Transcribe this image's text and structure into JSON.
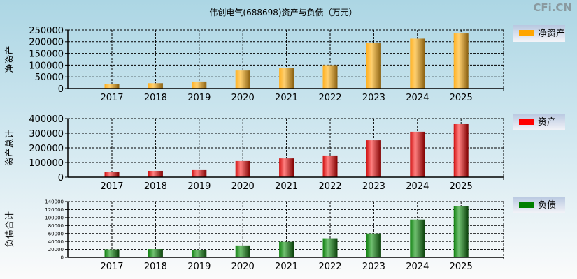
{
  "title": "伟创电气(688698)资产与负债（万元）",
  "watermark": "CFi.CN",
  "chart_data": [
    {
      "type": "bar",
      "ylabel": "净资产",
      "legend": "净资产",
      "color": "#ffa500",
      "gradient": [
        "#ffb020",
        "#ffd070",
        "#8a6010"
      ],
      "categories": [
        "2017",
        "2018",
        "2019",
        "2020",
        "2021",
        "2022",
        "2023",
        "2024",
        "2025"
      ],
      "values": [
        20000,
        23000,
        30000,
        77000,
        89000,
        100000,
        195000,
        213000,
        235000
      ],
      "ylim": [
        0,
        250000
      ],
      "yticks": [
        0,
        50000,
        100000,
        150000,
        200000,
        250000
      ],
      "grid": true,
      "legend_position": "right"
    },
    {
      "type": "bar",
      "ylabel": "资产总计",
      "legend": "资产",
      "color": "#ff0000",
      "gradient": [
        "#d01010",
        "#ff8080",
        "#800000"
      ],
      "categories": [
        "2017",
        "2018",
        "2019",
        "2020",
        "2021",
        "2022",
        "2023",
        "2024",
        "2025"
      ],
      "values": [
        38000,
        43000,
        48000,
        110000,
        128000,
        148000,
        252000,
        310000,
        362000
      ],
      "ylim": [
        0,
        400000
      ],
      "yticks": [
        0,
        100000,
        200000,
        300000,
        400000
      ],
      "grid": true,
      "legend_position": "right"
    },
    {
      "type": "bar",
      "ylabel": "负债合计",
      "legend": "负债",
      "color": "#008000",
      "gradient": [
        "#108010",
        "#70c070",
        "#0a400a"
      ],
      "categories": [
        "2017",
        "2018",
        "2019",
        "2020",
        "2021",
        "2022",
        "2023",
        "2024",
        "2025"
      ],
      "values": [
        20000,
        21000,
        18000,
        30000,
        39000,
        48000,
        60000,
        95000,
        128000
      ],
      "ylim": [
        0,
        140000
      ],
      "yticks": [
        0,
        20000,
        40000,
        60000,
        80000,
        100000,
        120000,
        140000
      ],
      "grid": true,
      "legend_position": "right"
    }
  ]
}
